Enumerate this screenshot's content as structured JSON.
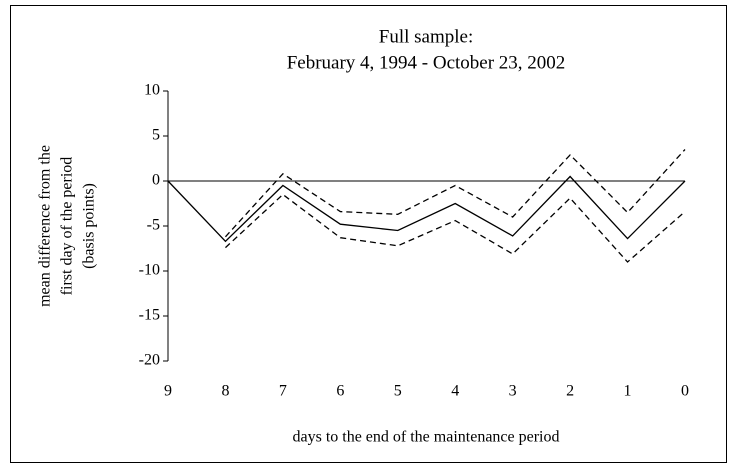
{
  "chart_data": {
    "type": "line",
    "title": [
      "Full sample:",
      "February 4, 1994 - October 23, 2002"
    ],
    "x_label": "days to the end of the maintenance period",
    "y_label": [
      "mean difference from the",
      "first day of the period",
      "(basis points)"
    ],
    "x": [
      9,
      8,
      7,
      6,
      5,
      4,
      3,
      2,
      1,
      0
    ],
    "xlim": [
      9,
      0
    ],
    "xticks": [
      9,
      8,
      7,
      6,
      5,
      4,
      3,
      2,
      1,
      0
    ],
    "ylim": [
      -20,
      10
    ],
    "yticks": [
      -20,
      -15,
      -10,
      -5,
      0,
      5,
      10
    ],
    "grid": false,
    "series": [
      {
        "color": "#000000",
        "dash": false,
        "values": [
          0,
          -6.7,
          -0.5,
          -4.8,
          -5.5,
          -2.5,
          -6.1,
          0.5,
          -6.4,
          0
        ]
      },
      {
        "color": "#000000",
        "dash": true,
        "values": [
          null,
          -6.2,
          0.8,
          -3.4,
          -3.7,
          -0.5,
          -4.0,
          2.9,
          -3.5,
          3.5
        ]
      },
      {
        "color": "#000000",
        "dash": true,
        "values": [
          null,
          -7.4,
          -1.5,
          -6.3,
          -7.2,
          -4.4,
          -8.1,
          -1.9,
          -9.0,
          -3.4
        ]
      }
    ]
  }
}
